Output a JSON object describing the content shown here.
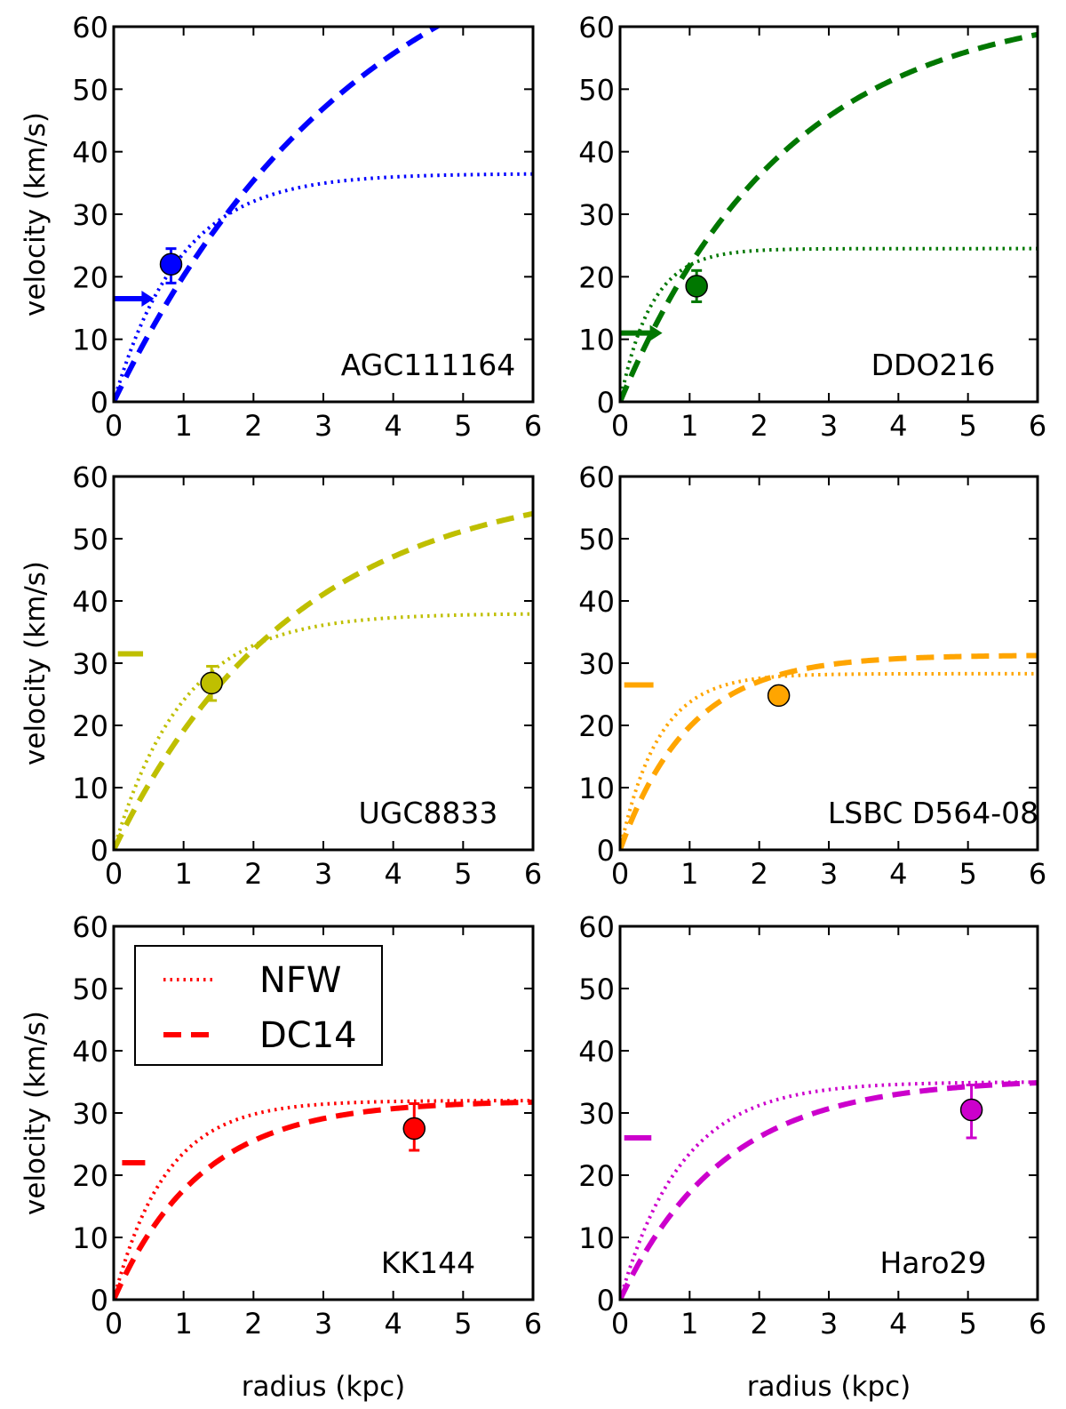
{
  "chart_data": [
    {
      "type": "line",
      "label": "AGC111164",
      "color": "#0000ff",
      "xlim": [
        0,
        6
      ],
      "ylim": [
        0,
        60
      ],
      "xticks": [
        0,
        1,
        2,
        3,
        4,
        5,
        6
      ],
      "yticks": [
        0,
        10,
        20,
        30,
        40,
        50,
        60
      ],
      "ylabel": "velocity  (km/s)",
      "xlabel": "",
      "nfw": {
        "vmax": 36.5,
        "r0": 0.95
      },
      "dc14": {
        "vmax": 83,
        "r0": 3.6
      },
      "point": {
        "x": 0.82,
        "y": 22,
        "yerr": [
          19,
          24.5
        ]
      },
      "marker": {
        "x": [
          0,
          0.45
        ],
        "y": 16.5,
        "arrow": true
      }
    },
    {
      "type": "line",
      "label": "DDO216",
      "color": "#007700",
      "xlim": [
        0,
        6
      ],
      "ylim": [
        0,
        60
      ],
      "xticks": [
        0,
        1,
        2,
        3,
        4,
        5,
        6
      ],
      "yticks": [
        0,
        10,
        20,
        30,
        40,
        50,
        60
      ],
      "ylabel": "",
      "xlabel": "",
      "nfw": {
        "vmax": 24.5,
        "r0": 0.45
      },
      "dc14": {
        "vmax": 64,
        "r0": 2.4
      },
      "point": {
        "x": 1.1,
        "y": 18.5,
        "yerr": [
          16,
          21
        ]
      },
      "marker": {
        "x": [
          0,
          0.48
        ],
        "y": 11,
        "arrow": true
      }
    },
    {
      "type": "line",
      "label": "UGC8833",
      "color": "#bfbf00",
      "xlim": [
        0,
        6
      ],
      "ylim": [
        0,
        60
      ],
      "xticks": [
        0,
        1,
        2,
        3,
        4,
        5,
        6
      ],
      "yticks": [
        0,
        10,
        20,
        30,
        40,
        50,
        60
      ],
      "ylabel": "velocity  (km/s)",
      "xlabel": "",
      "nfw": {
        "vmax": 38,
        "r0": 1.0
      },
      "dc14": {
        "vmax": 60,
        "r0": 2.6
      },
      "point": {
        "x": 1.4,
        "y": 26.8,
        "yerr": [
          24,
          29.5
        ]
      },
      "marker": {
        "x": [
          0.06,
          0.42
        ],
        "y": 31.5,
        "arrow": false
      }
    },
    {
      "type": "line",
      "label": "LSBC D564-08",
      "color": "#ffa500",
      "xlim": [
        0,
        6
      ],
      "ylim": [
        0,
        60
      ],
      "xticks": [
        0,
        1,
        2,
        3,
        4,
        5,
        6
      ],
      "yticks": [
        0,
        10,
        20,
        30,
        40,
        50,
        60
      ],
      "ylabel": "",
      "xlabel": "",
      "nfw": {
        "vmax": 28.3,
        "r0": 0.55
      },
      "dc14": {
        "vmax": 31.3,
        "r0": 1.0
      },
      "point": {
        "x": 2.28,
        "y": 24.8,
        "yerr": [
          24,
          25.8
        ]
      },
      "marker": {
        "x": [
          0.06,
          0.48
        ],
        "y": 26.5,
        "arrow": false
      }
    },
    {
      "type": "line",
      "label": "KK144",
      "color": "#ff0000",
      "xlim": [
        0,
        6
      ],
      "ylim": [
        0,
        60
      ],
      "xticks": [
        0,
        1,
        2,
        3,
        4,
        5,
        6
      ],
      "yticks": [
        0,
        10,
        20,
        30,
        40,
        50,
        60
      ],
      "ylabel": "velocity  (km/s)",
      "xlabel": "radius  (kpc)",
      "nfw": {
        "vmax": 32,
        "r0": 0.75
      },
      "dc14": {
        "vmax": 32,
        "r0": 1.25
      },
      "point": {
        "x": 4.3,
        "y": 27.5,
        "yerr": [
          24,
          31.5
        ]
      },
      "marker": {
        "x": [
          0.12,
          0.45
        ],
        "y": 22,
        "arrow": false
      },
      "legend": {
        "entries": [
          "NFW",
          "DC14"
        ],
        "position": "upper-left"
      }
    },
    {
      "type": "line",
      "label": "Haro29",
      "color": "#cc00cc",
      "xlim": [
        0,
        6
      ],
      "ylim": [
        0,
        60
      ],
      "xticks": [
        0,
        1,
        2,
        3,
        4,
        5,
        6
      ],
      "yticks": [
        0,
        10,
        20,
        30,
        40,
        50,
        60
      ],
      "ylabel": "",
      "xlabel": "radius  (kpc)",
      "nfw": {
        "vmax": 35,
        "r0": 0.9
      },
      "dc14": {
        "vmax": 35.5,
        "r0": 1.5
      },
      "point": {
        "x": 5.05,
        "y": 30.5,
        "yerr": [
          26,
          34.5
        ]
      },
      "marker": {
        "x": [
          0.06,
          0.45
        ],
        "y": 26,
        "arrow": false
      }
    }
  ]
}
